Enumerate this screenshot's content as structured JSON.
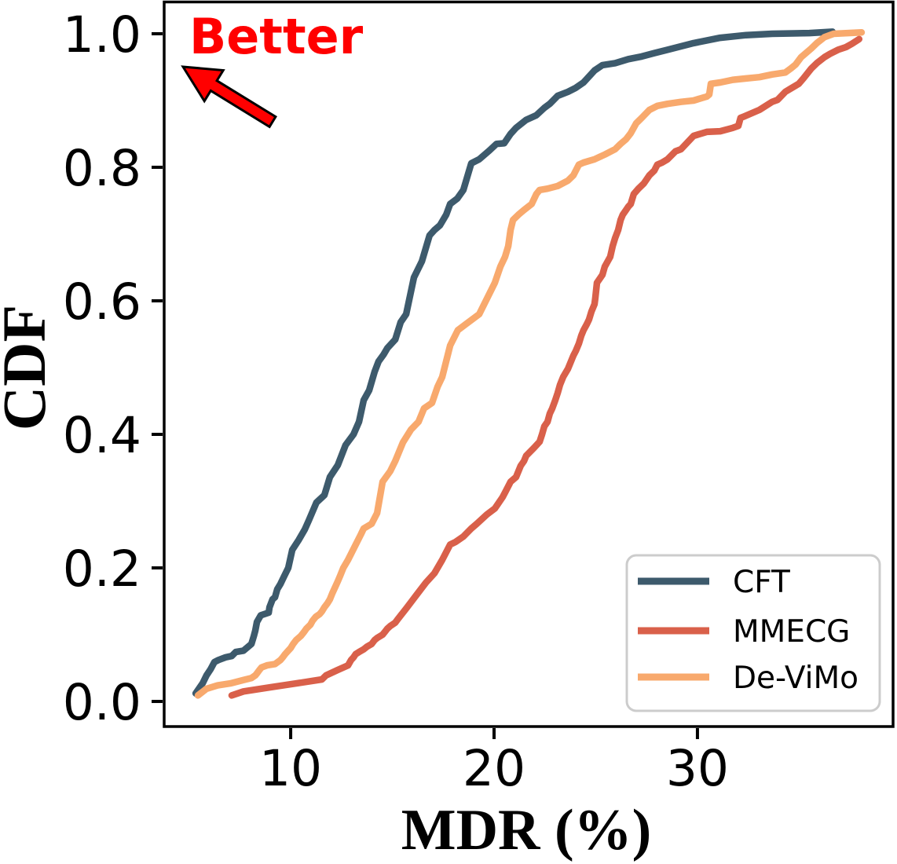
{
  "chart_data": {
    "type": "line",
    "title": "",
    "xlabel": "MDR (%)",
    "ylabel": "CDF",
    "xlim": [
      3.78,
      39.58
    ],
    "ylim": [
      -0.0376,
      1.047
    ],
    "x_ticks": {
      "values": [
        10,
        20,
        30
      ],
      "labels": [
        "10",
        "20",
        "30"
      ]
    },
    "y_ticks": {
      "values": [
        0.0,
        0.2,
        0.4,
        0.6,
        0.8,
        1.0
      ],
      "labels": [
        "0.0",
        "0.2",
        "0.4",
        "0.6",
        "0.8",
        "1.0"
      ]
    },
    "grid": false,
    "legend_position": "lower right",
    "annotation": {
      "text": "Better",
      "color": "#ff0000",
      "arrow": "up-left"
    },
    "series": [
      {
        "name": "CFT",
        "color": "#3d5a6c",
        "points": [
          [
            5.33,
            0.012
          ],
          [
            5.67,
            0.027
          ],
          [
            5.86,
            0.039
          ],
          [
            6.06,
            0.048
          ],
          [
            6.25,
            0.059
          ],
          [
            6.45,
            0.062
          ],
          [
            6.8,
            0.066
          ],
          [
            7.1,
            0.068
          ],
          [
            7.3,
            0.074
          ],
          [
            7.68,
            0.076
          ],
          [
            8.07,
            0.086
          ],
          [
            8.19,
            0.098
          ],
          [
            8.26,
            0.106
          ],
          [
            8.34,
            0.119
          ],
          [
            8.53,
            0.129
          ],
          [
            8.92,
            0.133
          ],
          [
            8.96,
            0.141
          ],
          [
            9.11,
            0.153
          ],
          [
            9.23,
            0.156
          ],
          [
            9.34,
            0.168
          ],
          [
            9.5,
            0.176
          ],
          [
            9.69,
            0.188
          ],
          [
            9.88,
            0.2
          ],
          [
            10.08,
            0.227
          ],
          [
            10.4,
            0.242
          ],
          [
            10.7,
            0.258
          ],
          [
            10.89,
            0.271
          ],
          [
            11.27,
            0.298
          ],
          [
            11.66,
            0.309
          ],
          [
            11.93,
            0.336
          ],
          [
            12.32,
            0.354
          ],
          [
            12.7,
            0.384
          ],
          [
            13.09,
            0.4
          ],
          [
            13.36,
            0.419
          ],
          [
            13.59,
            0.451
          ],
          [
            13.86,
            0.466
          ],
          [
            14.13,
            0.494
          ],
          [
            14.32,
            0.509
          ],
          [
            14.56,
            0.519
          ],
          [
            14.75,
            0.529
          ],
          [
            15.14,
            0.542
          ],
          [
            15.41,
            0.568
          ],
          [
            15.68,
            0.58
          ],
          [
            16.06,
            0.635
          ],
          [
            16.45,
            0.659
          ],
          [
            16.83,
            0.698
          ],
          [
            17.07,
            0.706
          ],
          [
            17.34,
            0.713
          ],
          [
            17.65,
            0.729
          ],
          [
            17.84,
            0.745
          ],
          [
            18.19,
            0.753
          ],
          [
            18.49,
            0.766
          ],
          [
            18.88,
            0.806
          ],
          [
            19.27,
            0.812
          ],
          [
            19.77,
            0.825
          ],
          [
            20.12,
            0.835
          ],
          [
            20.5,
            0.836
          ],
          [
            20.81,
            0.85
          ],
          [
            21.08,
            0.859
          ],
          [
            21.58,
            0.871
          ],
          [
            22.08,
            0.878
          ],
          [
            22.47,
            0.889
          ],
          [
            22.74,
            0.895
          ],
          [
            23.13,
            0.907
          ],
          [
            23.63,
            0.913
          ],
          [
            24.02,
            0.919
          ],
          [
            24.4,
            0.927
          ],
          [
            24.94,
            0.945
          ],
          [
            25.33,
            0.953
          ],
          [
            25.95,
            0.956
          ],
          [
            26.6,
            0.962
          ],
          [
            27.26,
            0.966
          ],
          [
            27.88,
            0.971
          ],
          [
            28.53,
            0.976
          ],
          [
            29.81,
            0.986
          ],
          [
            31.12,
            0.994
          ],
          [
            32.39,
            0.998
          ],
          [
            33.67,
            1.0
          ],
          [
            35.5,
            1.001
          ],
          [
            36.64,
            1.003
          ]
        ]
      },
      {
        "name": "MMECG",
        "color": "#d9604a",
        "points": [
          [
            7.1,
            0.009
          ],
          [
            7.68,
            0.015
          ],
          [
            8.96,
            0.021
          ],
          [
            10.27,
            0.027
          ],
          [
            11.54,
            0.033
          ],
          [
            11.74,
            0.039
          ],
          [
            12.3,
            0.047
          ],
          [
            12.82,
            0.054
          ],
          [
            12.97,
            0.062
          ],
          [
            13.09,
            0.066
          ],
          [
            13.2,
            0.071
          ],
          [
            13.36,
            0.074
          ],
          [
            13.59,
            0.078
          ],
          [
            13.75,
            0.082
          ],
          [
            13.98,
            0.086
          ],
          [
            14.13,
            0.092
          ],
          [
            14.25,
            0.095
          ],
          [
            14.52,
            0.1
          ],
          [
            14.63,
            0.104
          ],
          [
            14.75,
            0.109
          ],
          [
            14.9,
            0.113
          ],
          [
            15.14,
            0.118
          ],
          [
            15.29,
            0.124
          ],
          [
            15.7,
            0.14
          ],
          [
            16.2,
            0.16
          ],
          [
            16.65,
            0.178
          ],
          [
            17.07,
            0.192
          ],
          [
            17.45,
            0.212
          ],
          [
            17.84,
            0.235
          ],
          [
            18.11,
            0.239
          ],
          [
            18.49,
            0.247
          ],
          [
            18.88,
            0.259
          ],
          [
            19.15,
            0.266
          ],
          [
            19.65,
            0.28
          ],
          [
            20.04,
            0.289
          ],
          [
            20.42,
            0.306
          ],
          [
            20.54,
            0.313
          ],
          [
            20.81,
            0.329
          ],
          [
            21.08,
            0.336
          ],
          [
            21.31,
            0.353
          ],
          [
            21.47,
            0.36
          ],
          [
            21.58,
            0.368
          ],
          [
            21.97,
            0.38
          ],
          [
            22.24,
            0.389
          ],
          [
            22.36,
            0.4
          ],
          [
            22.47,
            0.412
          ],
          [
            22.63,
            0.419
          ],
          [
            22.74,
            0.431
          ],
          [
            22.86,
            0.439
          ],
          [
            23.01,
            0.451
          ],
          [
            23.13,
            0.462
          ],
          [
            23.24,
            0.474
          ],
          [
            23.4,
            0.486
          ],
          [
            23.63,
            0.498
          ],
          [
            23.78,
            0.509
          ],
          [
            23.9,
            0.518
          ],
          [
            24.02,
            0.525
          ],
          [
            24.17,
            0.536
          ],
          [
            24.29,
            0.548
          ],
          [
            24.4,
            0.556
          ],
          [
            24.56,
            0.565
          ],
          [
            24.67,
            0.572
          ],
          [
            24.79,
            0.584
          ],
          [
            24.94,
            0.595
          ],
          [
            24.98,
            0.604
          ],
          [
            25.06,
            0.627
          ],
          [
            25.33,
            0.639
          ],
          [
            25.44,
            0.651
          ],
          [
            25.71,
            0.666
          ],
          [
            25.83,
            0.682
          ],
          [
            25.95,
            0.694
          ],
          [
            26.1,
            0.706
          ],
          [
            26.22,
            0.721
          ],
          [
            26.33,
            0.729
          ],
          [
            26.49,
            0.736
          ],
          [
            26.6,
            0.741
          ],
          [
            26.72,
            0.745
          ],
          [
            26.87,
            0.76
          ],
          [
            27.1,
            0.768
          ],
          [
            27.37,
            0.776
          ],
          [
            27.64,
            0.788
          ],
          [
            27.88,
            0.795
          ],
          [
            28.03,
            0.804
          ],
          [
            28.26,
            0.807
          ],
          [
            28.53,
            0.812
          ],
          [
            28.92,
            0.824
          ],
          [
            29.19,
            0.827
          ],
          [
            29.81,
            0.847
          ],
          [
            30.46,
            0.853
          ],
          [
            31.12,
            0.854
          ],
          [
            31.74,
            0.859
          ],
          [
            32.01,
            0.862
          ],
          [
            32.12,
            0.874
          ],
          [
            32.28,
            0.876
          ],
          [
            33.05,
            0.886
          ],
          [
            33.67,
            0.898
          ],
          [
            33.94,
            0.901
          ],
          [
            34.32,
            0.913
          ],
          [
            34.59,
            0.918
          ],
          [
            34.98,
            0.925
          ],
          [
            35.21,
            0.933
          ],
          [
            35.6,
            0.948
          ],
          [
            35.87,
            0.956
          ],
          [
            36.25,
            0.965
          ],
          [
            36.52,
            0.97
          ],
          [
            36.91,
            0.976
          ],
          [
            37.3,
            0.98
          ],
          [
            37.6,
            0.985
          ],
          [
            37.95,
            0.992
          ]
        ]
      },
      {
        "name": "De-ViMo",
        "color": "#f8a96d",
        "points": [
          [
            5.44,
            0.009
          ],
          [
            5.86,
            0.019
          ],
          [
            6.41,
            0.024
          ],
          [
            7.03,
            0.027
          ],
          [
            7.68,
            0.032
          ],
          [
            8.07,
            0.035
          ],
          [
            8.26,
            0.039
          ],
          [
            8.34,
            0.042
          ],
          [
            8.46,
            0.047
          ],
          [
            8.57,
            0.051
          ],
          [
            8.84,
            0.054
          ],
          [
            9.23,
            0.056
          ],
          [
            9.5,
            0.062
          ],
          [
            9.61,
            0.066
          ],
          [
            9.73,
            0.071
          ],
          [
            9.88,
            0.076
          ],
          [
            10.0,
            0.08
          ],
          [
            10.12,
            0.086
          ],
          [
            10.27,
            0.092
          ],
          [
            10.5,
            0.098
          ],
          [
            10.66,
            0.104
          ],
          [
            10.77,
            0.109
          ],
          [
            10.97,
            0.115
          ],
          [
            11.08,
            0.121
          ],
          [
            11.24,
            0.127
          ],
          [
            11.43,
            0.131
          ],
          [
            11.54,
            0.135
          ],
          [
            11.66,
            0.141
          ],
          [
            11.81,
            0.147
          ],
          [
            11.93,
            0.153
          ],
          [
            12.05,
            0.162
          ],
          [
            12.2,
            0.172
          ],
          [
            12.32,
            0.18
          ],
          [
            12.43,
            0.188
          ],
          [
            12.59,
            0.2
          ],
          [
            12.82,
            0.212
          ],
          [
            13.2,
            0.235
          ],
          [
            13.45,
            0.25
          ],
          [
            13.59,
            0.259
          ],
          [
            13.98,
            0.266
          ],
          [
            14.25,
            0.282
          ],
          [
            14.52,
            0.329
          ],
          [
            14.9,
            0.345
          ],
          [
            15.14,
            0.36
          ],
          [
            15.52,
            0.388
          ],
          [
            15.91,
            0.407
          ],
          [
            16.29,
            0.419
          ],
          [
            16.56,
            0.439
          ],
          [
            16.95,
            0.447
          ],
          [
            17.22,
            0.471
          ],
          [
            17.45,
            0.486
          ],
          [
            17.84,
            0.533
          ],
          [
            18.22,
            0.556
          ],
          [
            18.61,
            0.565
          ],
          [
            19.27,
            0.58
          ],
          [
            20.04,
            0.627
          ],
          [
            20.31,
            0.651
          ],
          [
            20.54,
            0.666
          ],
          [
            20.7,
            0.682
          ],
          [
            20.81,
            0.706
          ],
          [
            20.93,
            0.721
          ],
          [
            21.2,
            0.729
          ],
          [
            21.47,
            0.736
          ],
          [
            21.85,
            0.745
          ],
          [
            22.08,
            0.76
          ],
          [
            22.24,
            0.766
          ],
          [
            22.63,
            0.768
          ],
          [
            23.13,
            0.772
          ],
          [
            23.63,
            0.78
          ],
          [
            23.9,
            0.788
          ],
          [
            24.17,
            0.804
          ],
          [
            24.4,
            0.807
          ],
          [
            24.94,
            0.812
          ],
          [
            25.44,
            0.819
          ],
          [
            25.95,
            0.827
          ],
          [
            26.22,
            0.835
          ],
          [
            26.49,
            0.842
          ],
          [
            26.72,
            0.851
          ],
          [
            26.99,
            0.866
          ],
          [
            27.26,
            0.874
          ],
          [
            27.64,
            0.886
          ],
          [
            28.03,
            0.892
          ],
          [
            28.53,
            0.895
          ],
          [
            29.19,
            0.898
          ],
          [
            29.81,
            0.9
          ],
          [
            30.46,
            0.906
          ],
          [
            30.58,
            0.909
          ],
          [
            30.66,
            0.925
          ],
          [
            31.12,
            0.927
          ],
          [
            31.74,
            0.931
          ],
          [
            32.39,
            0.933
          ],
          [
            33.05,
            0.935
          ],
          [
            33.67,
            0.939
          ],
          [
            34.32,
            0.942
          ],
          [
            34.59,
            0.948
          ],
          [
            34.83,
            0.954
          ],
          [
            35.1,
            0.965
          ],
          [
            35.37,
            0.972
          ],
          [
            35.6,
            0.978
          ],
          [
            35.87,
            0.986
          ],
          [
            36.25,
            0.995
          ],
          [
            36.7,
            1.0
          ],
          [
            38.07,
            1.002
          ]
        ]
      }
    ]
  }
}
